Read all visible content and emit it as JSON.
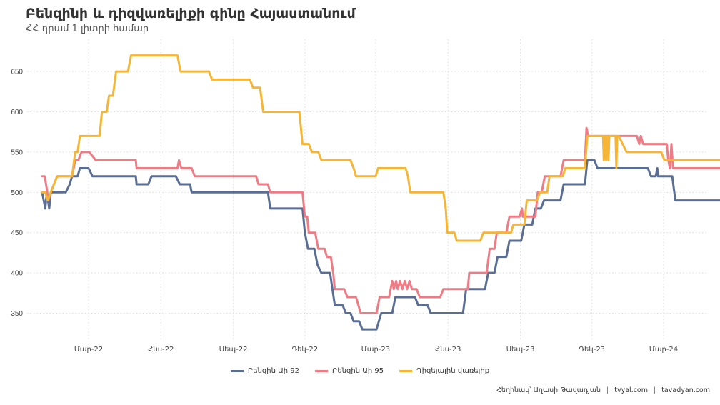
{
  "chart_data": {
    "type": "line",
    "title": "Բենզինի և դիզվառելիքի գինը Հայաստանում",
    "subtitle": "ՀՀ դրամ 1 լիտրի համար",
    "xlabel": "",
    "ylabel": "",
    "x_tick_labels": [
      "Մար-22",
      "Հնս-22",
      "Սեպ-22",
      "Դեկ-22",
      "Մար-23",
      "Հնս-23",
      "Սեպ-23",
      "Դեկ-23",
      "Մար-24"
    ],
    "y_tick_labels": [
      "350",
      "400",
      "450",
      "500",
      "550",
      "600",
      "650"
    ],
    "ylim": [
      315,
      690
    ],
    "grid": true,
    "legend_position": "bottom",
    "series": [
      {
        "name": "Բենզին Աի 92",
        "color": "#5a6e95",
        "points": [
          [
            "2022-01-01",
            500
          ],
          [
            "2022-01-03",
            490
          ],
          [
            "2022-01-05",
            480
          ],
          [
            "2022-01-07",
            500
          ],
          [
            "2022-01-10",
            480
          ],
          [
            "2022-01-12",
            500
          ],
          [
            "2022-01-31",
            500
          ],
          [
            "2022-02-05",
            510
          ],
          [
            "2022-02-08",
            520
          ],
          [
            "2022-02-15",
            520
          ],
          [
            "2022-02-18",
            530
          ],
          [
            "2022-03-01",
            530
          ],
          [
            "2022-03-06",
            520
          ],
          [
            "2022-04-30",
            520
          ],
          [
            "2022-05-01",
            510
          ],
          [
            "2022-05-16",
            510
          ],
          [
            "2022-05-20",
            520
          ],
          [
            "2022-06-20",
            520
          ],
          [
            "2022-06-25",
            510
          ],
          [
            "2022-07-08",
            510
          ],
          [
            "2022-07-10",
            500
          ],
          [
            "2022-10-15",
            500
          ],
          [
            "2022-10-18",
            480
          ],
          [
            "2022-11-28",
            480
          ],
          [
            "2022-12-01",
            450
          ],
          [
            "2022-12-05",
            430
          ],
          [
            "2022-12-13",
            430
          ],
          [
            "2022-12-17",
            410
          ],
          [
            "2022-12-22",
            400
          ],
          [
            "2023-01-02",
            400
          ],
          [
            "2023-01-05",
            380
          ],
          [
            "2023-01-08",
            360
          ],
          [
            "2023-01-18",
            360
          ],
          [
            "2023-01-22",
            350
          ],
          [
            "2023-01-28",
            350
          ],
          [
            "2023-02-01",
            340
          ],
          [
            "2023-02-08",
            340
          ],
          [
            "2023-02-12",
            330
          ],
          [
            "2023-03-02",
            330
          ],
          [
            "2023-03-08",
            350
          ],
          [
            "2023-03-22",
            350
          ],
          [
            "2023-03-26",
            370
          ],
          [
            "2023-04-20",
            370
          ],
          [
            "2023-04-24",
            360
          ],
          [
            "2023-05-06",
            360
          ],
          [
            "2023-05-10",
            350
          ],
          [
            "2023-06-20",
            350
          ],
          [
            "2023-06-24",
            380
          ],
          [
            "2023-07-18",
            380
          ],
          [
            "2023-07-22",
            400
          ],
          [
            "2023-07-30",
            400
          ],
          [
            "2023-08-03",
            420
          ],
          [
            "2023-08-14",
            420
          ],
          [
            "2023-08-18",
            440
          ],
          [
            "2023-09-02",
            440
          ],
          [
            "2023-09-06",
            460
          ],
          [
            "2023-09-16",
            460
          ],
          [
            "2023-09-20",
            480
          ],
          [
            "2023-09-27",
            480
          ],
          [
            "2023-10-01",
            490
          ],
          [
            "2023-10-22",
            490
          ],
          [
            "2023-10-26",
            510
          ],
          [
            "2023-11-22",
            510
          ],
          [
            "2023-11-25",
            540
          ],
          [
            "2023-12-04",
            540
          ],
          [
            "2023-12-08",
            530
          ],
          [
            "2024-02-10",
            530
          ],
          [
            "2024-02-14",
            520
          ],
          [
            "2024-02-20",
            520
          ],
          [
            "2024-02-22",
            530
          ],
          [
            "2024-02-23",
            520
          ],
          [
            "2024-03-12",
            520
          ],
          [
            "2024-03-16",
            490
          ],
          [
            "2024-06-08",
            490
          ]
        ]
      },
      {
        "name": "Բենզին Աի 95",
        "color": "#f07b85",
        "points": [
          [
            "2022-01-01",
            520
          ],
          [
            "2022-01-04",
            520
          ],
          [
            "2022-01-06",
            510
          ],
          [
            "2022-01-09",
            490
          ],
          [
            "2022-01-12",
            500
          ],
          [
            "2022-01-16",
            510
          ],
          [
            "2022-01-20",
            520
          ],
          [
            "2022-02-08",
            520
          ],
          [
            "2022-02-12",
            540
          ],
          [
            "2022-02-16",
            540
          ],
          [
            "2022-02-20",
            550
          ],
          [
            "2022-03-02",
            550
          ],
          [
            "2022-03-10",
            540
          ],
          [
            "2022-04-30",
            540
          ],
          [
            "2022-05-01",
            530
          ],
          [
            "2022-06-22",
            530
          ],
          [
            "2022-06-24",
            540
          ],
          [
            "2022-06-27",
            530
          ],
          [
            "2022-07-10",
            530
          ],
          [
            "2022-07-14",
            520
          ],
          [
            "2022-09-30",
            520
          ],
          [
            "2022-10-03",
            510
          ],
          [
            "2022-10-15",
            510
          ],
          [
            "2022-10-18",
            500
          ],
          [
            "2022-11-28",
            500
          ],
          [
            "2022-12-01",
            470
          ],
          [
            "2022-12-04",
            470
          ],
          [
            "2022-12-06",
            450
          ],
          [
            "2022-12-14",
            450
          ],
          [
            "2022-12-18",
            430
          ],
          [
            "2022-12-26",
            430
          ],
          [
            "2022-12-29",
            420
          ],
          [
            "2023-01-03",
            420
          ],
          [
            "2023-01-06",
            400
          ],
          [
            "2023-01-08",
            380
          ],
          [
            "2023-01-20",
            380
          ],
          [
            "2023-01-24",
            370
          ],
          [
            "2023-02-04",
            370
          ],
          [
            "2023-02-07",
            360
          ],
          [
            "2023-02-10",
            350
          ],
          [
            "2023-03-02",
            350
          ],
          [
            "2023-03-06",
            370
          ],
          [
            "2023-03-18",
            370
          ],
          [
            "2023-03-22",
            390
          ],
          [
            "2023-03-24",
            380
          ],
          [
            "2023-03-27",
            390
          ],
          [
            "2023-03-29",
            380
          ],
          [
            "2023-04-01",
            390
          ],
          [
            "2023-04-04",
            380
          ],
          [
            "2023-04-07",
            390
          ],
          [
            "2023-04-10",
            380
          ],
          [
            "2023-04-13",
            390
          ],
          [
            "2023-04-16",
            380
          ],
          [
            "2023-04-22",
            380
          ],
          [
            "2023-04-26",
            370
          ],
          [
            "2023-05-22",
            370
          ],
          [
            "2023-05-26",
            380
          ],
          [
            "2023-06-26",
            380
          ],
          [
            "2023-06-28",
            400
          ],
          [
            "2023-07-20",
            400
          ],
          [
            "2023-07-24",
            430
          ],
          [
            "2023-07-30",
            430
          ],
          [
            "2023-08-02",
            450
          ],
          [
            "2023-08-14",
            450
          ],
          [
            "2023-08-18",
            470
          ],
          [
            "2023-08-31",
            470
          ],
          [
            "2023-09-03",
            480
          ],
          [
            "2023-09-04",
            470
          ],
          [
            "2023-09-20",
            470
          ],
          [
            "2023-09-23",
            500
          ],
          [
            "2023-09-28",
            500
          ],
          [
            "2023-10-02",
            520
          ],
          [
            "2023-10-22",
            520
          ],
          [
            "2023-10-26",
            540
          ],
          [
            "2023-11-22",
            540
          ],
          [
            "2023-11-24",
            580
          ],
          [
            "2023-11-26",
            570
          ],
          [
            "2023-12-10",
            570
          ],
          [
            "2023-12-14",
            570
          ],
          [
            "2024-01-27",
            570
          ],
          [
            "2024-01-30",
            560
          ],
          [
            "2024-02-01",
            570
          ],
          [
            "2024-02-04",
            560
          ],
          [
            "2024-03-05",
            560
          ],
          [
            "2024-03-07",
            540
          ],
          [
            "2024-03-09",
            530
          ],
          [
            "2024-03-11",
            560
          ],
          [
            "2024-03-13",
            530
          ],
          [
            "2024-06-08",
            530
          ]
        ]
      },
      {
        "name": "Դիզելային վառելիք",
        "color": "#f6b534",
        "points": [
          [
            "2022-01-01",
            500
          ],
          [
            "2022-01-05",
            500
          ],
          [
            "2022-01-08",
            490
          ],
          [
            "2022-01-12",
            500
          ],
          [
            "2022-01-16",
            510
          ],
          [
            "2022-01-20",
            520
          ],
          [
            "2022-02-08",
            520
          ],
          [
            "2022-02-12",
            550
          ],
          [
            "2022-02-15",
            550
          ],
          [
            "2022-02-18",
            570
          ],
          [
            "2022-03-15",
            570
          ],
          [
            "2022-03-18",
            600
          ],
          [
            "2022-03-24",
            600
          ],
          [
            "2022-03-27",
            620
          ],
          [
            "2022-04-01",
            620
          ],
          [
            "2022-04-05",
            650
          ],
          [
            "2022-04-20",
            650
          ],
          [
            "2022-04-24",
            670
          ],
          [
            "2022-06-22",
            670
          ],
          [
            "2022-06-26",
            650
          ],
          [
            "2022-08-01",
            650
          ],
          [
            "2022-08-05",
            640
          ],
          [
            "2022-09-22",
            640
          ],
          [
            "2022-09-26",
            630
          ],
          [
            "2022-10-05",
            630
          ],
          [
            "2022-10-09",
            600
          ],
          [
            "2022-11-24",
            600
          ],
          [
            "2022-11-28",
            560
          ],
          [
            "2022-12-06",
            560
          ],
          [
            "2022-12-10",
            550
          ],
          [
            "2022-12-18",
            550
          ],
          [
            "2022-12-22",
            540
          ],
          [
            "2023-01-28",
            540
          ],
          [
            "2023-02-01",
            530
          ],
          [
            "2023-02-04",
            520
          ],
          [
            "2023-03-01",
            520
          ],
          [
            "2023-03-04",
            530
          ],
          [
            "2023-04-08",
            530
          ],
          [
            "2023-04-11",
            520
          ],
          [
            "2023-04-14",
            500
          ],
          [
            "2023-05-26",
            500
          ],
          [
            "2023-05-29",
            480
          ],
          [
            "2023-05-31",
            450
          ],
          [
            "2023-06-09",
            450
          ],
          [
            "2023-06-12",
            440
          ],
          [
            "2023-07-12",
            440
          ],
          [
            "2023-07-16",
            450
          ],
          [
            "2023-08-20",
            450
          ],
          [
            "2023-08-23",
            460
          ],
          [
            "2023-09-06",
            460
          ],
          [
            "2023-09-09",
            490
          ],
          [
            "2023-09-22",
            490
          ],
          [
            "2023-09-26",
            500
          ],
          [
            "2023-10-05",
            500
          ],
          [
            "2023-10-08",
            520
          ],
          [
            "2023-10-25",
            520
          ],
          [
            "2023-10-28",
            530
          ],
          [
            "2023-11-22",
            530
          ],
          [
            "2023-11-25",
            570
          ],
          [
            "2023-12-15",
            570
          ],
          [
            "2023-12-16",
            540
          ],
          [
            "2023-12-17",
            570
          ],
          [
            "2023-12-19",
            540
          ],
          [
            "2023-12-20",
            570
          ],
          [
            "2023-12-22",
            540
          ],
          [
            "2023-12-23",
            570
          ],
          [
            "2023-12-31",
            570
          ],
          [
            "2024-01-01",
            530
          ],
          [
            "2024-01-02",
            570
          ],
          [
            "2024-01-04",
            570
          ],
          [
            "2024-01-09",
            560
          ],
          [
            "2024-01-14",
            550
          ],
          [
            "2024-02-27",
            550
          ],
          [
            "2024-03-02",
            540
          ],
          [
            "2024-06-05",
            540
          ],
          [
            "2024-06-06",
            510
          ],
          [
            "2024-06-08",
            540
          ]
        ]
      }
    ]
  },
  "caption": {
    "author": "Հեղինակ՝ Աղասի Թավադյան",
    "site1": "tvyal.com",
    "separator": "|",
    "site2": "tavadyan.com"
  }
}
